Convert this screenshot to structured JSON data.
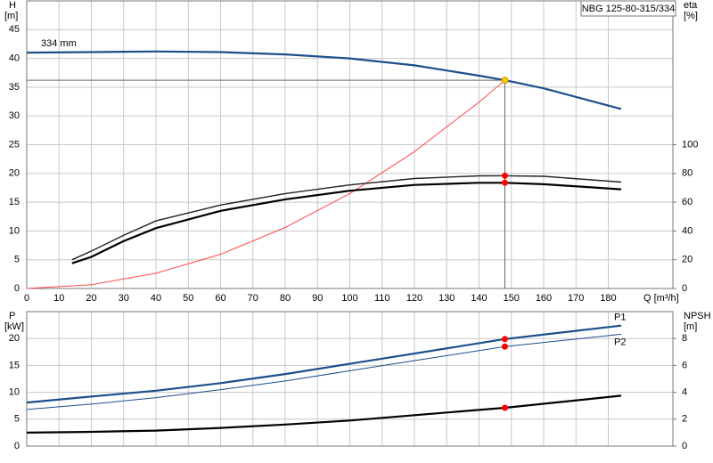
{
  "chart_data": [
    {
      "type": "line",
      "title": "NBG 125-80-315/334",
      "x_label": "Q [m³/h]",
      "y_label": "H",
      "y_unit": "[m]",
      "y2_label": "eta",
      "y2_unit": "[%]",
      "xlim": [
        0,
        200
      ],
      "xticks": [
        0,
        10,
        20,
        30,
        40,
        50,
        60,
        70,
        80,
        90,
        100,
        110,
        120,
        130,
        140,
        150,
        160,
        170,
        180
      ],
      "ylim": [
        0,
        50
      ],
      "yticks": [
        0,
        5,
        10,
        15,
        20,
        25,
        30,
        35,
        40,
        45
      ],
      "y2lim": [
        0,
        200
      ],
      "y2ticks": [
        0,
        20,
        40,
        60,
        80,
        100
      ],
      "grid": true,
      "xtick_labels": true,
      "series": [
        {
          "name": "334 mm",
          "label_at": "start",
          "color": "#1b4f8c",
          "style": "thick",
          "x": [
            0,
            20,
            40,
            60,
            80,
            100,
            120,
            140,
            148,
            160,
            184
          ],
          "values": [
            41,
            41.1,
            41.2,
            41.1,
            40.7,
            40,
            38.8,
            37,
            36.2,
            34.8,
            31.2
          ]
        },
        {
          "color": "#ff4a4a",
          "style": "thin",
          "x": [
            0,
            20,
            40,
            60,
            80,
            100,
            120,
            140,
            148
          ],
          "values": [
            0,
            0.66,
            2.64,
            5.95,
            10.6,
            16.5,
            23.8,
            32.4,
            36.2
          ]
        },
        {
          "color": "#222222",
          "style": "mid",
          "axis": "y2",
          "x": [
            14,
            20,
            30,
            40,
            60,
            80,
            100,
            120,
            140,
            148,
            160,
            184
          ],
          "values": [
            20,
            26,
            37,
            47,
            58,
            66,
            72,
            76.5,
            78.3,
            78.4,
            78,
            74
          ]
        },
        {
          "color": "#000000",
          "style": "thick",
          "axis": "y2",
          "x": [
            14,
            20,
            30,
            40,
            60,
            80,
            100,
            120,
            140,
            148,
            160,
            184
          ],
          "values": [
            17.5,
            22,
            33,
            42,
            54,
            62,
            68,
            72,
            73.5,
            73.5,
            72.5,
            69
          ]
        },
        {
          "color": "#ffc800",
          "style": "point",
          "guides": true,
          "x": [
            148
          ],
          "values": [
            36.2
          ]
        },
        {
          "color": "#ff0000",
          "style": "point",
          "axis": "y2",
          "x": [
            148
          ],
          "values": [
            78.4
          ]
        },
        {
          "color": "#ff0000",
          "style": "point",
          "axis": "y2",
          "x": [
            148
          ],
          "values": [
            73.5
          ]
        }
      ]
    },
    {
      "type": "line",
      "y_label": "P",
      "y_unit": "[kW]",
      "y2_label": "NPSH",
      "y2_unit": "[m]",
      "xlim": [
        0,
        200
      ],
      "xticks": [
        0,
        10,
        20,
        30,
        40,
        50,
        60,
        70,
        80,
        90,
        100,
        110,
        120,
        130,
        140,
        150,
        160,
        170,
        180
      ],
      "ylim": [
        0,
        25
      ],
      "yticks": [
        0,
        5,
        10,
        15,
        20
      ],
      "y2lim": [
        0,
        10
      ],
      "y2ticks": [
        0,
        2,
        4,
        6,
        8
      ],
      "grid": true,
      "xtick_labels": false,
      "series": [
        {
          "name": "P1",
          "label_at": "end",
          "color": "#1b4f8c",
          "style": "thick",
          "x": [
            0,
            18,
            40,
            60,
            80,
            100,
            120,
            148,
            184
          ],
          "values": [
            8.1,
            9.1,
            10.3,
            11.7,
            13.4,
            15.3,
            17.2,
            19.9,
            22.4
          ]
        },
        {
          "name": "P2",
          "label_at": "end",
          "color": "#1b4f8c",
          "style": "thin",
          "x": [
            0,
            20,
            40,
            60,
            80,
            100,
            120,
            148,
            184
          ],
          "values": [
            6.8,
            7.8,
            9.0,
            10.5,
            12.1,
            14.0,
            15.9,
            18.5,
            20.8
          ]
        },
        {
          "color": "#000000",
          "style": "thick",
          "axis": "y2",
          "x": [
            0,
            18,
            40,
            60,
            80,
            100,
            120,
            148,
            184
          ],
          "values": [
            1.0,
            1.05,
            1.15,
            1.35,
            1.6,
            1.9,
            2.3,
            2.85,
            3.75
          ]
        },
        {
          "color": "#ff0000",
          "style": "point",
          "x": [
            148
          ],
          "values": [
            19.9
          ]
        },
        {
          "color": "#ff0000",
          "style": "point",
          "x": [
            148
          ],
          "values": [
            18.5
          ]
        },
        {
          "color": "#ff0000",
          "style": "point",
          "axis": "y2",
          "x": [
            148
          ],
          "values": [
            2.85
          ]
        }
      ]
    }
  ]
}
